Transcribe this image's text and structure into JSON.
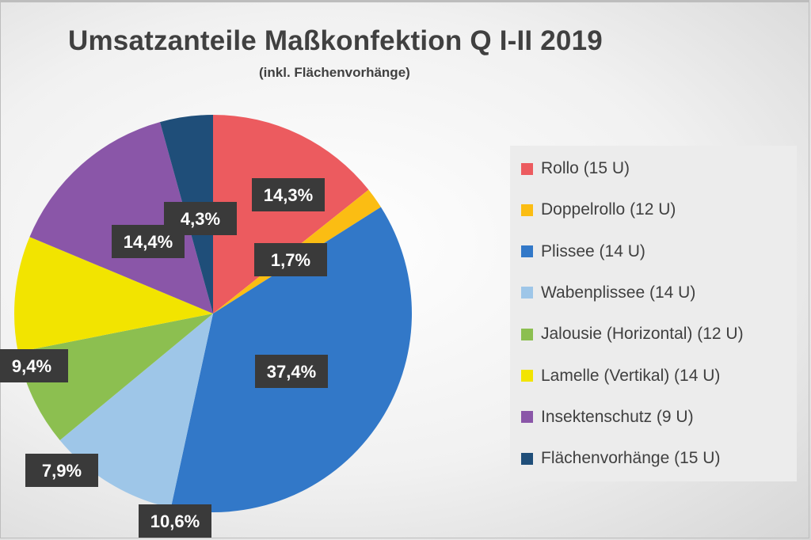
{
  "chart_data": {
    "type": "pie",
    "title": "Umsatzanteile Maßkonfektion Q I-II 2019",
    "subtitle": "(inkl. Flächenvorhänge)",
    "legend_position": "right",
    "slices": [
      {
        "label": "Rollo (15 U)",
        "value": 14.3,
        "display": "14,3%",
        "color": "#ec5b5f"
      },
      {
        "label": "Doppelrollo (12 U)",
        "value": 1.7,
        "display": "1,7%",
        "color": "#fbbd13"
      },
      {
        "label": "Plissee (14 U)",
        "value": 37.4,
        "display": "37,4%",
        "color": "#3278c8"
      },
      {
        "label": "Wabenplissee (14 U)",
        "value": 10.6,
        "display": "10,6%",
        "color": "#9ec6e8"
      },
      {
        "label": "Jalousie (Horizontal) (12 U)",
        "value": 7.9,
        "display": "7,9%",
        "color": "#8cbf50"
      },
      {
        "label": "Lamelle (Vertikal) (14 U)",
        "value": 9.4,
        "display": "9,4%",
        "color": "#f2e400"
      },
      {
        "label": "Insektenschutz (9 U)",
        "value": 14.4,
        "display": "14,4%",
        "color": "#8a56a8"
      },
      {
        "label": "Flächenvorhänge (15 U)",
        "value": 4.3,
        "display": "4,3%",
        "color": "#1f4e79"
      }
    ]
  }
}
